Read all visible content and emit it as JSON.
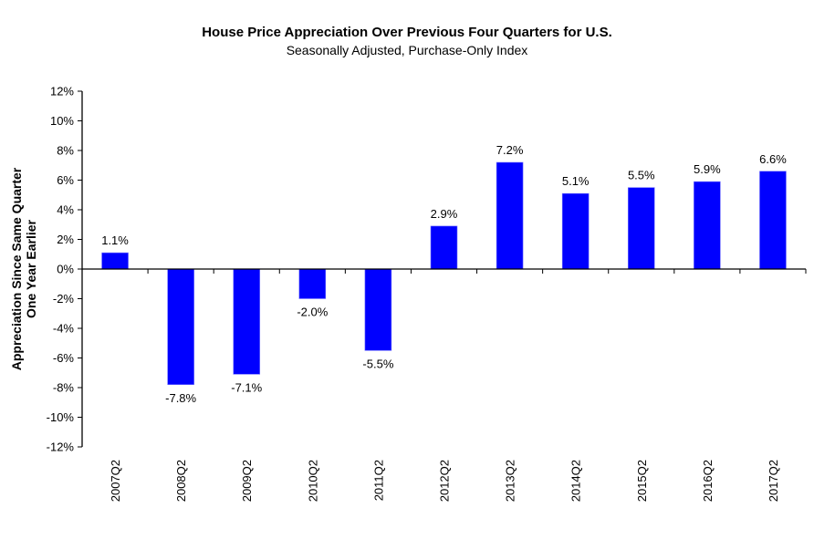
{
  "chart_data": {
    "type": "bar",
    "title": "House Price Appreciation Over Previous Four Quarters for U.S.",
    "subtitle": "Seasonally Adjusted, Purchase-Only Index",
    "xlabel": "",
    "ylabel_lines": [
      "Appreciation Since Same Quarter",
      "One Year Earlier"
    ],
    "categories": [
      "2007Q2",
      "2008Q2",
      "2009Q2",
      "2010Q2",
      "2011Q2",
      "2012Q2",
      "2013Q2",
      "2014Q2",
      "2015Q2",
      "2016Q2",
      "2017Q2"
    ],
    "values": [
      1.1,
      -7.8,
      -7.1,
      -2.0,
      -5.5,
      2.9,
      7.2,
      5.1,
      5.5,
      5.9,
      6.6
    ],
    "data_labels": [
      "1.1%",
      "-7.8%",
      "-7.1%",
      "-2.0%",
      "-5.5%",
      "2.9%",
      "7.2%",
      "5.1%",
      "5.5%",
      "5.9%",
      "6.6%"
    ],
    "ylim": [
      -12,
      12
    ],
    "yticks": [
      12,
      10,
      8,
      6,
      4,
      2,
      0,
      -2,
      -4,
      -6,
      -8,
      -10,
      -12
    ],
    "ytick_labels": [
      "12%",
      "10%",
      "8%",
      "6%",
      "4%",
      "2%",
      "0%",
      "-2%",
      "-4%",
      "-6%",
      "-8%",
      "-10%",
      "-12%"
    ],
    "grid": false,
    "legend": "none",
    "bar_color": "#0000FF"
  }
}
